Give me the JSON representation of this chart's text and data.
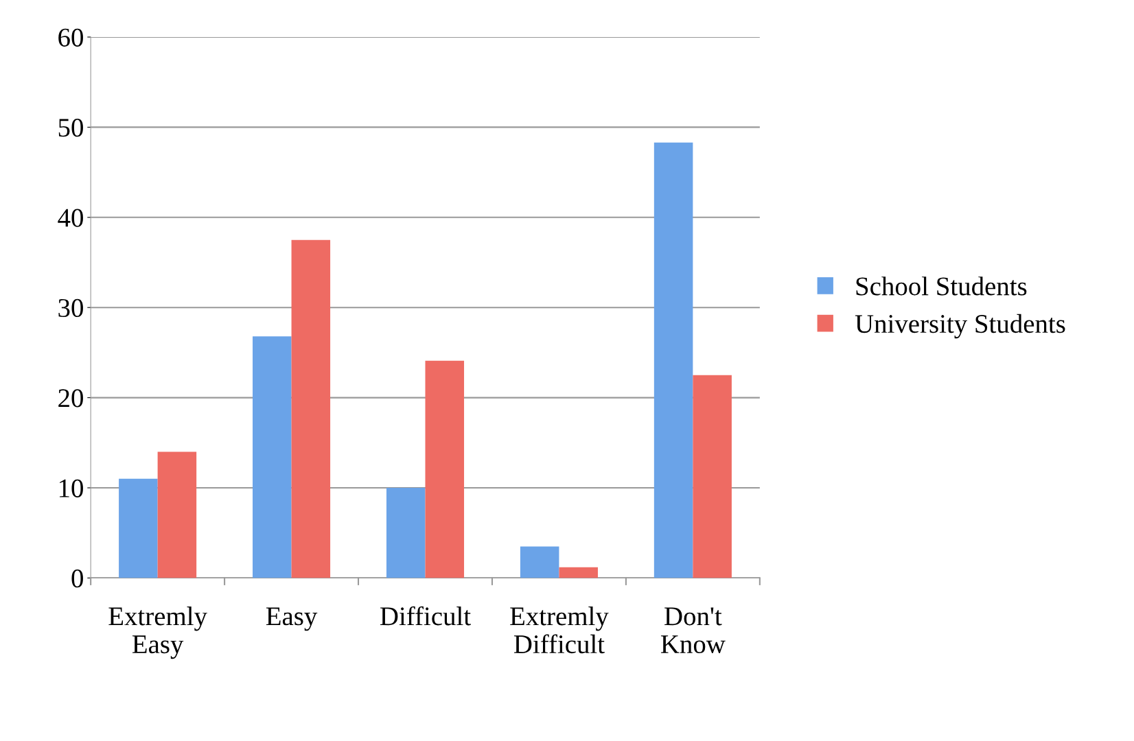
{
  "chart_data": {
    "type": "bar",
    "categories": [
      "Extremly\nEasy",
      "Easy",
      "Difficult",
      "Extremly\nDifficult",
      "Don't\nKnow"
    ],
    "series": [
      {
        "name": "School Students",
        "color": "#6aa3e8",
        "values": [
          11,
          26.8,
          10,
          3.5,
          48.3
        ]
      },
      {
        "name": "University Students",
        "color": "#ee6b63",
        "values": [
          14,
          37.5,
          24.1,
          1.2,
          22.5
        ]
      }
    ],
    "ylim": [
      0,
      60
    ],
    "yticks": [
      0,
      10,
      20,
      30,
      40,
      50,
      60
    ],
    "grid": "y",
    "legend": "right"
  }
}
